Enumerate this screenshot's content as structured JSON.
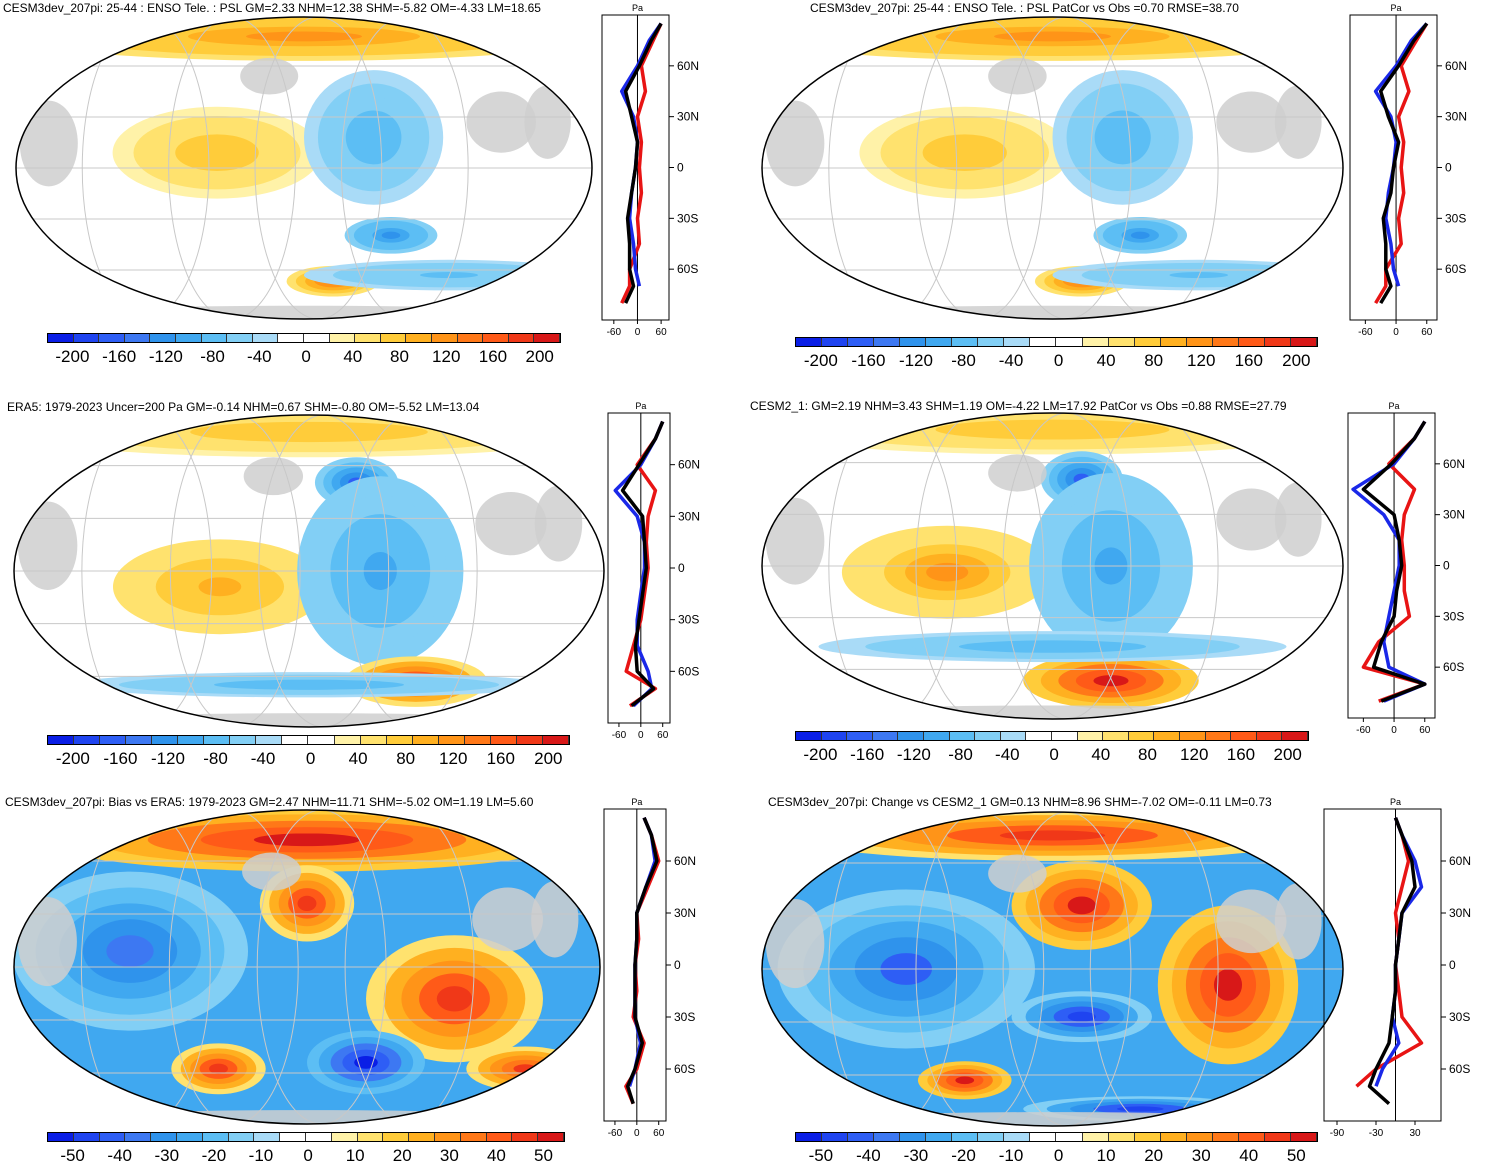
{
  "colors": {
    "neg": [
      "#0a1ee6",
      "#1f44f0",
      "#2e5ef5",
      "#3d78f2",
      "#2f93ec",
      "#40a8f0",
      "#5cbef4",
      "#82cff5",
      "#a9dbf7"
    ],
    "white": "#ffffff",
    "pos": [
      "#fff2a8",
      "#ffe26e",
      "#ffcc3a",
      "#ffb020",
      "#ff9418",
      "#ff7818",
      "#ff5a18",
      "#f03818",
      "#d81818"
    ],
    "land": "#cfcfcf",
    "curve_model": "#e81414",
    "curve_obs": "#1a28e8",
    "curve_mean": "#000000"
  },
  "panels": [
    {
      "title": "CESM3dev_207pi: 25-44 : ENSO Tele. : PSL GM=2.33 NHM=12.38 SHM=-5.82 OM=-4.33 LM=18.65",
      "colorbar_labels": [
        "-200",
        "-160",
        "-120",
        "-80",
        "-40",
        "0",
        "40",
        "80",
        "120",
        "160",
        "200"
      ],
      "lat_labels": [
        "60N",
        "30N",
        "0",
        "30S",
        "60S"
      ],
      "x_tick_labels": [
        "-60",
        "0",
        "60"
      ],
      "x_unit": "Pa",
      "chart_data": {
        "type": "line",
        "x_range": [
          -90,
          80
        ],
        "lat": [
          -80,
          -70,
          -60,
          -45,
          -30,
          -15,
          0,
          15,
          30,
          45,
          60,
          75,
          85
        ],
        "series": [
          {
            "name": "model",
            "values": [
              -40,
              -20,
              -20,
              5,
              0,
              10,
              5,
              10,
              0,
              20,
              10,
              40,
              60
            ]
          },
          {
            "name": "obs",
            "values": [
              null,
              5,
              -5,
              -10,
              -20,
              -15,
              -5,
              0,
              -10,
              -40,
              0,
              30,
              60
            ]
          },
          {
            "name": "mean",
            "values": [
              -30,
              -10,
              -20,
              -20,
              -25,
              -15,
              -5,
              0,
              -15,
              -30,
              5,
              35,
              60
            ]
          }
        ]
      }
    },
    {
      "title": "CESM3dev_207pi: 25-44 : ENSO Tele. : PSL PatCor vs Obs =0.70 RMSE=38.70",
      "colorbar_labels": [
        "-200",
        "-160",
        "-120",
        "-80",
        "-40",
        "0",
        "40",
        "80",
        "120",
        "160",
        "200"
      ],
      "lat_labels": [
        "60N",
        "30N",
        "0",
        "30S",
        "60S"
      ],
      "x_tick_labels": [
        "-60",
        "0",
        "60"
      ],
      "x_unit": "Pa",
      "chart_data": {
        "type": "line",
        "x_range": [
          -90,
          80
        ],
        "lat": [
          -80,
          -70,
          -60,
          -45,
          -30,
          -15,
          0,
          15,
          30,
          45,
          60,
          75,
          85
        ],
        "series": [
          {
            "name": "model",
            "values": [
              -40,
              -20,
              -20,
              10,
              5,
              15,
              10,
              15,
              5,
              25,
              10,
              40,
              60
            ]
          },
          {
            "name": "obs",
            "values": [
              null,
              5,
              -5,
              -10,
              -20,
              -15,
              -5,
              0,
              -10,
              -40,
              0,
              30,
              60
            ]
          },
          {
            "name": "mean",
            "values": [
              -30,
              -10,
              -20,
              -20,
              -25,
              -10,
              -5,
              5,
              -15,
              -30,
              5,
              35,
              60
            ]
          }
        ]
      }
    },
    {
      "title": "ERA5: 1979-2023 Uncer=200 Pa GM=-0.14 NHM=0.67 SHM=-0.80 OM=-5.52 LM=13.04",
      "colorbar_labels": [
        "-200",
        "-160",
        "-120",
        "-80",
        "-40",
        "0",
        "40",
        "80",
        "120",
        "160",
        "200"
      ],
      "lat_labels": [
        "60N",
        "30N",
        "0",
        "30S",
        "60S"
      ],
      "x_tick_labels": [
        "-60",
        "0",
        "60"
      ],
      "x_unit": "Pa",
      "chart_data": {
        "type": "line",
        "x_range": [
          -90,
          80
        ],
        "lat": [
          -80,
          -70,
          -60,
          -45,
          -30,
          -15,
          0,
          15,
          30,
          45,
          60,
          75,
          85
        ],
        "series": [
          {
            "name": "model",
            "values": [
              -30,
              40,
              -40,
              -20,
              0,
              10,
              20,
              15,
              20,
              40,
              -10,
              40,
              60
            ]
          },
          {
            "name": "obs",
            "values": [
              -20,
              30,
              20,
              -10,
              -10,
              0,
              10,
              10,
              -10,
              -70,
              0,
              40,
              60
            ]
          },
          {
            "name": "mean",
            "values": [
              -25,
              35,
              -10,
              -15,
              -5,
              5,
              15,
              10,
              5,
              -50,
              -5,
              40,
              60
            ]
          }
        ]
      }
    },
    {
      "title": "CESM2_1: GM=2.19 NHM=3.43 SHM=1.19 OM=-4.22 LM=17.92 PatCor vs Obs =0.88 RMSE=27.79",
      "colorbar_labels": [
        "-200",
        "-160",
        "-120",
        "-80",
        "-40",
        "0",
        "40",
        "80",
        "120",
        "160",
        "200"
      ],
      "lat_labels": [
        "60N",
        "30N",
        "0",
        "30S",
        "60S"
      ],
      "x_tick_labels": [
        "-60",
        "0",
        "60"
      ],
      "x_unit": "Pa",
      "chart_data": {
        "type": "line",
        "x_range": [
          -90,
          80
        ],
        "lat": [
          -80,
          -70,
          -60,
          -45,
          -30,
          -15,
          0,
          15,
          30,
          45,
          60,
          75,
          85
        ],
        "series": [
          {
            "name": "model",
            "values": [
              -30,
              60,
              -60,
              -30,
              30,
              20,
              20,
              15,
              20,
              40,
              -10,
              40,
              60
            ]
          },
          {
            "name": "obs",
            "values": [
              -20,
              60,
              -10,
              -20,
              -10,
              0,
              10,
              10,
              -20,
              -80,
              0,
              40,
              60
            ]
          },
          {
            "name": "mean",
            "values": [
              -25,
              60,
              -40,
              -25,
              0,
              5,
              15,
              10,
              0,
              -60,
              -5,
              40,
              60
            ]
          }
        ]
      }
    },
    {
      "title": "CESM3dev_207pi: Bias vs ERA5: 1979-2023 GM=2.47 NHM=11.71 SHM=-5.02 OM=1.19 LM=5.60",
      "colorbar_labels": [
        "-50",
        "-40",
        "-30",
        "-20",
        "-10",
        "0",
        "10",
        "20",
        "30",
        "40",
        "50"
      ],
      "lat_labels": [
        "60N",
        "30N",
        "0",
        "30S",
        "60S"
      ],
      "x_tick_labels": [
        "-60",
        "0",
        "60"
      ],
      "x_unit": "Pa",
      "chart_data": {
        "type": "line",
        "x_range": [
          -90,
          80
        ],
        "lat": [
          -80,
          -70,
          -60,
          -45,
          -30,
          -15,
          0,
          15,
          30,
          45,
          60,
          75,
          85
        ],
        "series": [
          {
            "name": "model",
            "values": [
              -10,
              -30,
              0,
              20,
              -10,
              0,
              -5,
              5,
              0,
              30,
              60,
              40,
              20
            ]
          },
          {
            "name": "obs",
            "values": [
              null,
              -20,
              -5,
              10,
              -5,
              -5,
              -5,
              0,
              0,
              25,
              50,
              40,
              20
            ]
          },
          {
            "name": "mean",
            "values": [
              -10,
              -25,
              -5,
              15,
              -5,
              -5,
              -5,
              0,
              0,
              25,
              55,
              40,
              20
            ]
          }
        ]
      }
    },
    {
      "title": "CESM3dev_207pi: Change vs CESM2_1 GM=0.13 NHM=8.96 SHM=-7.02 OM=-0.11 LM=0.73",
      "colorbar_labels": [
        "-50",
        "-40",
        "-30",
        "-20",
        "-10",
        "0",
        "10",
        "20",
        "30",
        "40",
        "50"
      ],
      "lat_labels": [
        "60N",
        "30N",
        "0",
        "30S",
        "60S"
      ],
      "x_tick_labels": [
        "-90",
        "-30",
        "30"
      ],
      "x_unit": "Pa",
      "chart_data": {
        "type": "line",
        "x_range": [
          -110,
          70
        ],
        "lat": [
          -80,
          -70,
          -60,
          -45,
          -30,
          -15,
          0,
          15,
          30,
          45,
          60,
          75,
          85
        ],
        "series": [
          {
            "name": "model",
            "values": [
              null,
              -60,
              -30,
              40,
              10,
              5,
              0,
              5,
              0,
              10,
              20,
              10,
              0
            ]
          },
          {
            "name": "obs",
            "values": [
              null,
              -30,
              -20,
              5,
              -5,
              0,
              0,
              5,
              10,
              40,
              30,
              10,
              0
            ]
          },
          {
            "name": "mean",
            "values": [
              -10,
              -40,
              -30,
              -10,
              -5,
              0,
              0,
              5,
              10,
              30,
              25,
              10,
              0
            ]
          }
        ]
      }
    }
  ]
}
